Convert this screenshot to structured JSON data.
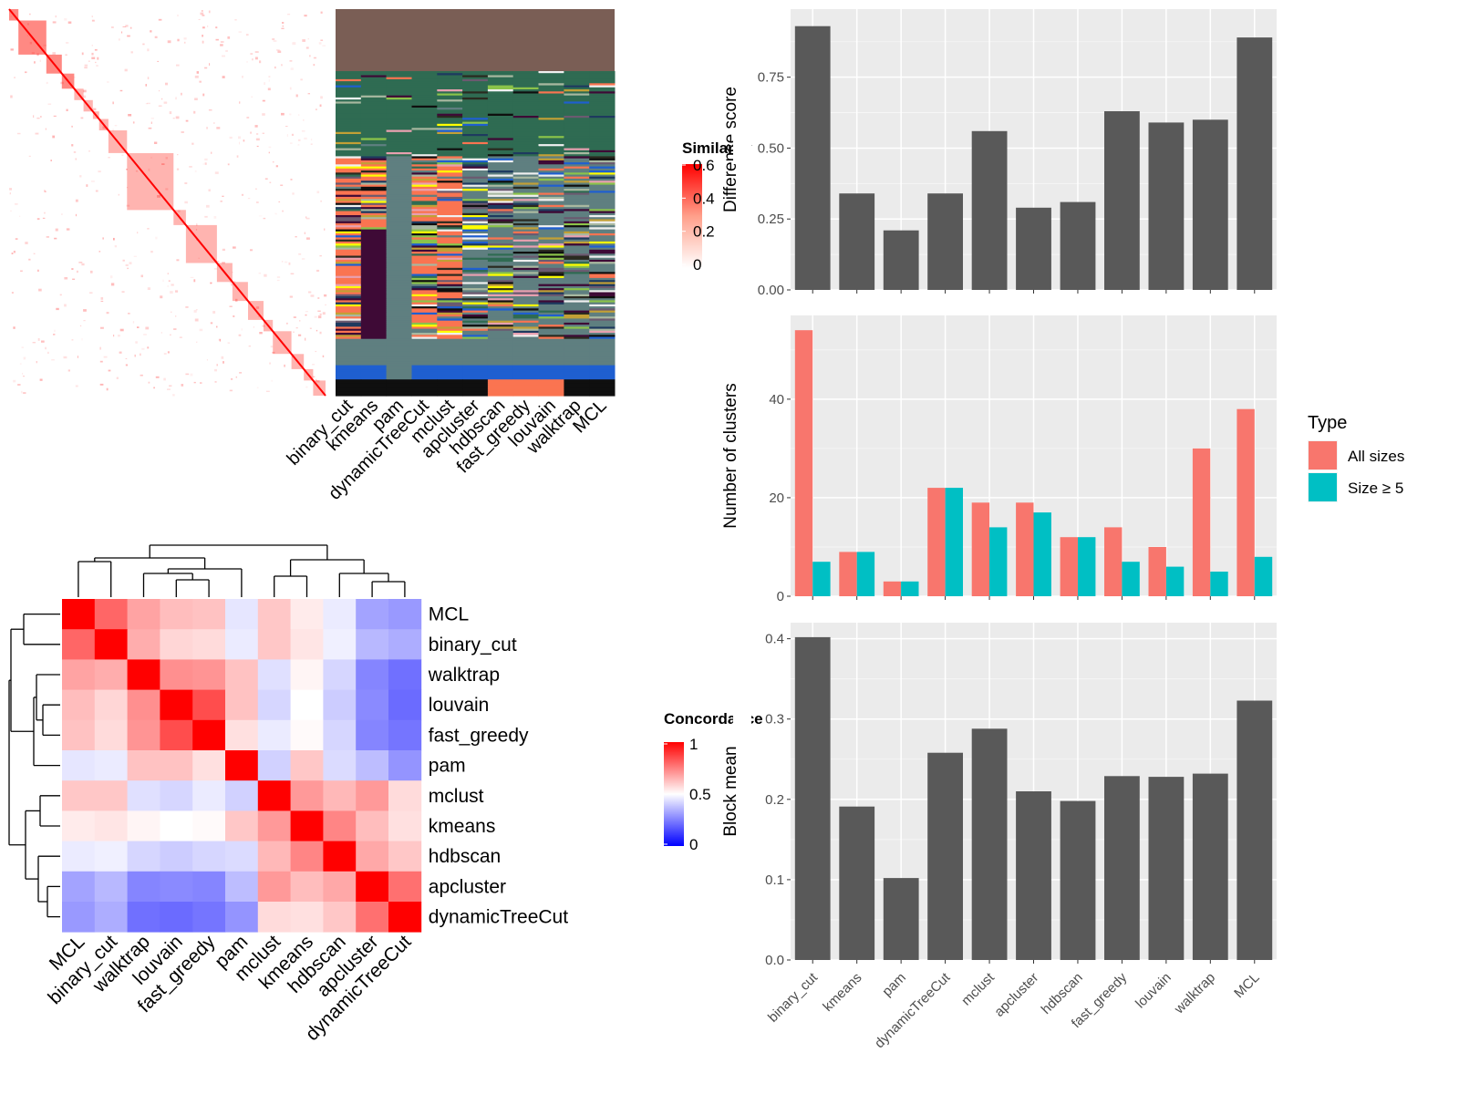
{
  "methods": [
    "binary_cut",
    "kmeans",
    "pam",
    "dynamicTreeCut",
    "mclust",
    "apcluster",
    "hdbscan",
    "fast_greedy",
    "louvain",
    "walktrap",
    "MCL"
  ],
  "similarity_legend": {
    "title": "Similarity",
    "ticks": [
      "0",
      "0.2",
      "0.4",
      "0.6"
    ],
    "colors": [
      "#ffffff",
      "#ff0000"
    ]
  },
  "concordance_legend": {
    "title": "Concordance",
    "ticks": [
      "0",
      "0.5",
      "1"
    ],
    "colors": [
      "#0000ff",
      "#ffffff",
      "#ff0000"
    ]
  },
  "concordance_order": [
    "MCL",
    "binary_cut",
    "walktrap",
    "louvain",
    "fast_greedy",
    "pam",
    "mclust",
    "kmeans",
    "hdbscan",
    "apcluster",
    "dynamicTreeCut"
  ],
  "chart_data": [
    {
      "type": "heatmap",
      "title": "",
      "legend_title": "Similarity",
      "color_range": [
        0,
        0.6
      ],
      "columns": [
        "binary_cut",
        "kmeans",
        "pam",
        "dynamicTreeCut",
        "mclust",
        "apcluster",
        "hdbscan",
        "fast_greedy",
        "louvain",
        "walktrap",
        "MCL"
      ],
      "diagonal_blocks_fraction": [
        0.03,
        0.09,
        0.05,
        0.04,
        0.03,
        0.03,
        0.02,
        0.03,
        0.06,
        0.15,
        0.04,
        0.1,
        0.05,
        0.05,
        0.05,
        0.03,
        0.06,
        0.04,
        0.03,
        0.04
      ]
    },
    {
      "type": "heatmap",
      "title": "",
      "legend_title": "Concordance",
      "color_range": [
        0,
        1
      ],
      "rows": [
        "MCL",
        "binary_cut",
        "walktrap",
        "louvain",
        "fast_greedy",
        "pam",
        "mclust",
        "kmeans",
        "hdbscan",
        "apcluster",
        "dynamicTreeCut"
      ],
      "columns": [
        "MCL",
        "binary_cut",
        "walktrap",
        "louvain",
        "fast_greedy",
        "pam",
        "mclust",
        "kmeans",
        "hdbscan",
        "apcluster",
        "dynamicTreeCut"
      ],
      "values": [
        [
          1.0,
          0.8,
          0.68,
          0.63,
          0.62,
          0.45,
          0.61,
          0.54,
          0.46,
          0.32,
          0.3
        ],
        [
          0.8,
          1.0,
          0.66,
          0.58,
          0.57,
          0.46,
          0.61,
          0.55,
          0.47,
          0.36,
          0.34
        ],
        [
          0.68,
          0.66,
          1.0,
          0.72,
          0.71,
          0.62,
          0.44,
          0.52,
          0.42,
          0.26,
          0.22
        ],
        [
          0.63,
          0.58,
          0.72,
          1.0,
          0.85,
          0.62,
          0.42,
          0.5,
          0.4,
          0.27,
          0.21
        ],
        [
          0.62,
          0.57,
          0.71,
          0.85,
          1.0,
          0.56,
          0.46,
          0.51,
          0.42,
          0.26,
          0.23
        ],
        [
          0.45,
          0.46,
          0.62,
          0.62,
          0.56,
          1.0,
          0.41,
          0.61,
          0.43,
          0.37,
          0.29
        ],
        [
          0.61,
          0.61,
          0.44,
          0.42,
          0.46,
          0.41,
          1.0,
          0.7,
          0.64,
          0.7,
          0.57
        ],
        [
          0.54,
          0.55,
          0.52,
          0.5,
          0.51,
          0.61,
          0.7,
          1.0,
          0.74,
          0.63,
          0.56
        ],
        [
          0.46,
          0.47,
          0.42,
          0.4,
          0.42,
          0.43,
          0.64,
          0.74,
          1.0,
          0.67,
          0.61
        ],
        [
          0.32,
          0.36,
          0.26,
          0.27,
          0.26,
          0.37,
          0.7,
          0.63,
          0.67,
          1.0,
          0.78
        ],
        [
          0.3,
          0.34,
          0.22,
          0.21,
          0.23,
          0.29,
          0.57,
          0.56,
          0.61,
          0.78,
          1.0
        ]
      ]
    },
    {
      "type": "bar",
      "categories": [
        "binary_cut",
        "kmeans",
        "pam",
        "dynamicTreeCut",
        "mclust",
        "apcluster",
        "hdbscan",
        "fast_greedy",
        "louvain",
        "walktrap",
        "MCL"
      ],
      "values": [
        0.93,
        0.34,
        0.21,
        0.34,
        0.56,
        0.29,
        0.31,
        0.63,
        0.59,
        0.6,
        0.89
      ],
      "xlabel": "",
      "ylabel": "Difference score",
      "ylim": [
        0,
        0.99
      ],
      "yticks": [
        "0.00",
        "0.25",
        "0.50",
        "0.75"
      ]
    },
    {
      "type": "bar",
      "categories": [
        "binary_cut",
        "kmeans",
        "pam",
        "dynamicTreeCut",
        "mclust",
        "apcluster",
        "hdbscan",
        "fast_greedy",
        "louvain",
        "walktrap",
        "MCL"
      ],
      "series": [
        {
          "name": "All sizes",
          "color": "#F8766D",
          "values": [
            54,
            9,
            3,
            22,
            19,
            19,
            12,
            14,
            10,
            30,
            38
          ]
        },
        {
          "name": "Size ≥ 5",
          "color": "#00BFC4",
          "values": [
            7,
            9,
            3,
            22,
            14,
            17,
            12,
            7,
            6,
            5,
            8
          ]
        }
      ],
      "xlabel": "",
      "ylabel": "Number of clusters",
      "ylim": [
        0,
        57
      ],
      "yticks": [
        "0",
        "20",
        "40"
      ],
      "legend_title": "Type",
      "legend_position": "right"
    },
    {
      "type": "bar",
      "categories": [
        "binary_cut",
        "kmeans",
        "pam",
        "dynamicTreeCut",
        "mclust",
        "apcluster",
        "hdbscan",
        "fast_greedy",
        "louvain",
        "walktrap",
        "MCL"
      ],
      "values": [
        0.402,
        0.191,
        0.102,
        0.258,
        0.288,
        0.21,
        0.198,
        0.229,
        0.228,
        0.232,
        0.323
      ],
      "xlabel": "",
      "ylabel": "Block mean",
      "ylim": [
        0,
        0.42
      ],
      "yticks": [
        "0.0",
        "0.1",
        "0.2",
        "0.3",
        "0.4"
      ]
    }
  ]
}
